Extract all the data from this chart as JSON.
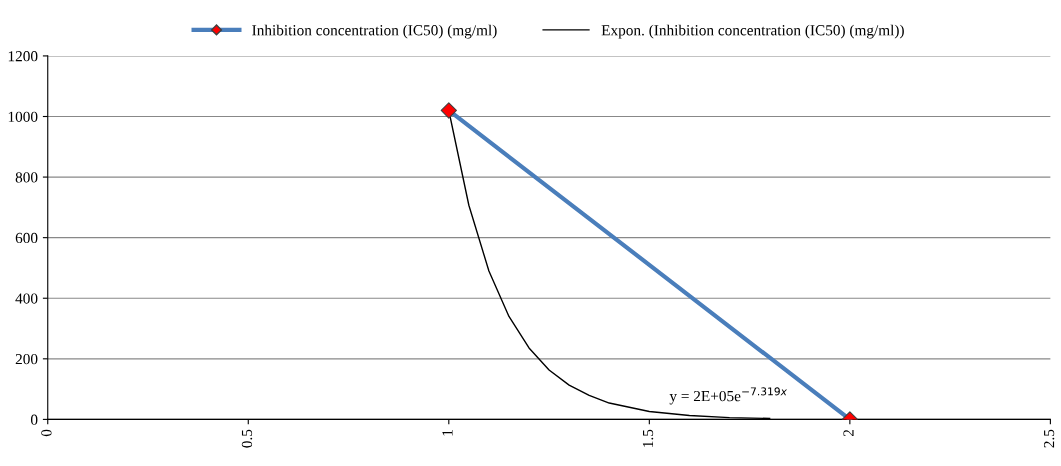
{
  "chart_data": {
    "type": "line",
    "series": [
      {
        "name": "Inhibition concentration (IC50) (mg/ml)",
        "color": "#4a7ebb",
        "marker": "diamond",
        "colors": [
          "#ff0000",
          "#ff0000"
        ],
        "x": [
          1,
          2
        ],
        "values": [
          1020,
          0
        ]
      },
      {
        "name": "Expon. (Inhibition concentration (IC50) (mg/ml))",
        "color": "#000000",
        "marker": "none",
        "x": [
          1.0,
          1.05,
          1.1,
          1.15,
          1.2,
          1.25,
          1.3,
          1.35,
          1.4,
          1.5,
          1.6,
          1.7,
          1.8
        ],
        "values": [
          1020,
          707,
          490,
          340,
          236,
          163,
          113,
          79,
          54,
          26,
          13,
          6,
          3
        ]
      }
    ],
    "xlim": [
      0,
      2.5
    ],
    "xticks": [
      0,
      0.5,
      1,
      1.5,
      2,
      2.5
    ],
    "ylim": [
      0,
      1200
    ],
    "yticks": [
      0,
      200,
      400,
      600,
      800,
      1000,
      1200
    ],
    "grid": "y",
    "legend": "top",
    "annotations": [
      "y = 2E+05e$^{−7.319x}$"
    ]
  }
}
